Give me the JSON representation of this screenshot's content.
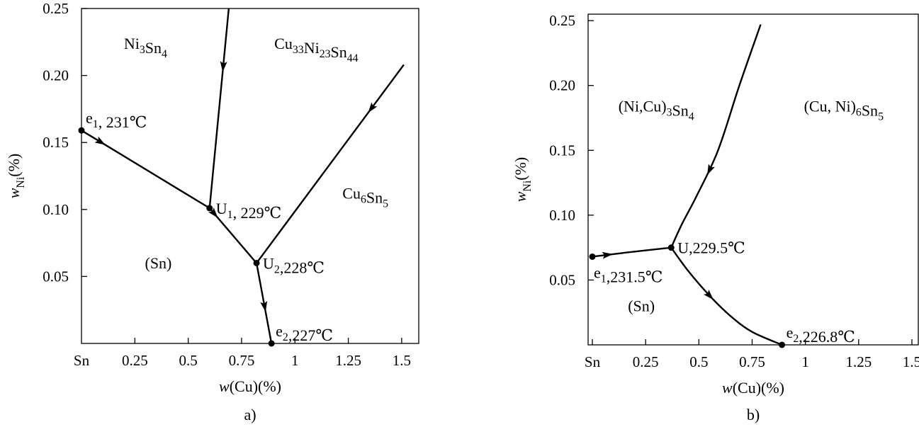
{
  "chart_data": [
    {
      "type": "line",
      "caption": "a)",
      "xlabel": "w(Cu)(%)",
      "ylabel": "wNi(%)",
      "x_ticks": [
        {
          "v": 0,
          "label": "Sn"
        },
        {
          "v": 0.25,
          "label": "0.25"
        },
        {
          "v": 0.5,
          "label": "0.5"
        },
        {
          "v": 0.75,
          "label": "0.75"
        },
        {
          "v": 1,
          "label": "1"
        },
        {
          "v": 1.25,
          "label": "1.25"
        },
        {
          "v": 1.5,
          "label": "1.5"
        }
      ],
      "y_ticks": [
        {
          "v": 0.05,
          "label": "0.05"
        },
        {
          "v": 0.1,
          "label": "0.10"
        },
        {
          "v": 0.15,
          "label": "0.15"
        },
        {
          "v": 0.2,
          "label": "0.20"
        },
        {
          "v": 0.25,
          "label": "0.25"
        }
      ],
      "xlim": [
        0,
        1.58
      ],
      "ylim": [
        0,
        0.25
      ],
      "points": [
        {
          "x": 0.0,
          "y": 0.159,
          "label": "e₁, 231℃",
          "pos": "above-right"
        },
        {
          "x": 0.6,
          "y": 0.101,
          "label": "U₁, 229℃",
          "pos": "right"
        },
        {
          "x": 0.82,
          "y": 0.06,
          "label": "U₂,228℃",
          "pos": "right"
        },
        {
          "x": 0.89,
          "y": 0.0,
          "label": "e₂,227℃",
          "pos": "above-right"
        }
      ],
      "lines": [
        {
          "x": [
            0.0,
            0.6
          ],
          "y": [
            0.159,
            0.101
          ],
          "arrows": [
            0.15
          ]
        },
        {
          "x": [
            0.69,
            0.6
          ],
          "y": [
            0.25,
            0.101
          ],
          "arrows": [
            0.29
          ]
        },
        {
          "x": [
            0.6,
            0.82
          ],
          "y": [
            0.101,
            0.06
          ],
          "arrows": [
            0.1
          ]
        },
        {
          "x": [
            1.51,
            0.82
          ],
          "y": [
            0.208,
            0.06
          ],
          "arrows": [
            0.22
          ]
        },
        {
          "x": [
            0.82,
            0.89
          ],
          "y": [
            0.06,
            0.0
          ],
          "arrows": [
            0.54
          ]
        }
      ],
      "regions": [
        {
          "label": "Ni₃Sn₄",
          "x": 0.3,
          "y": 0.22
        },
        {
          "label": "Cu₃₃Ni₂₃Sn₄₄",
          "x": 1.1,
          "y": 0.22
        },
        {
          "label": "Cu₆Sn₅",
          "x": 1.33,
          "y": 0.108
        },
        {
          "label": "(Sn)",
          "x": 0.36,
          "y": 0.056
        }
      ]
    },
    {
      "type": "line",
      "caption": "b)",
      "xlabel": "w(Cu)(%)",
      "ylabel": "wNi(%)",
      "x_ticks": [
        {
          "v": 0,
          "label": "Sn"
        },
        {
          "v": 0.25,
          "label": "0.25"
        },
        {
          "v": 0.5,
          "label": "0.5"
        },
        {
          "v": 0.75,
          "label": "0.75"
        },
        {
          "v": 1,
          "label": "1"
        },
        {
          "v": 1.25,
          "label": "1.25"
        },
        {
          "v": 1.5,
          "label": "1.5"
        }
      ],
      "y_ticks": [
        {
          "v": 0.05,
          "label": "0.05"
        },
        {
          "v": 0.1,
          "label": "0.10"
        },
        {
          "v": 0.15,
          "label": "0.15"
        },
        {
          "v": 0.2,
          "label": "0.20"
        },
        {
          "v": 0.25,
          "label": "0.25"
        }
      ],
      "xlim": [
        -0.02,
        1.53
      ],
      "ylim": [
        0,
        0.255
      ],
      "points": [
        {
          "x": 0.0,
          "y": 0.068,
          "label": "e₁,231.5℃",
          "pos": "below-right"
        },
        {
          "x": 0.37,
          "y": 0.075,
          "label": "U,229.5℃",
          "pos": "right"
        },
        {
          "x": 0.89,
          "y": 0.0,
          "label": "e₂,226.8℃",
          "pos": "above-right"
        }
      ],
      "lines": [
        {
          "x": [
            0.0,
            0.15,
            0.37
          ],
          "y": [
            0.068,
            0.071,
            0.075
          ],
          "arrows": [
            0.19
          ]
        },
        {
          "x": [
            0.79,
            0.69,
            0.59,
            0.49,
            0.42,
            0.37
          ],
          "y": [
            0.247,
            0.2,
            0.15,
            0.115,
            0.093,
            0.075
          ],
          "arrows": [
            0.64
          ]
        },
        {
          "x": [
            0.37,
            0.45,
            0.55,
            0.65,
            0.75,
            0.89
          ],
          "y": [
            0.075,
            0.057,
            0.038,
            0.022,
            0.01,
            0.0
          ],
          "arrows": [
            0.41
          ]
        }
      ],
      "regions": [
        {
          "label": "(Ni,Cu)₃Sn₄",
          "x": 0.3,
          "y": 0.18
        },
        {
          "label": "(Cu, Ni)₆Sn₅",
          "x": 1.18,
          "y": 0.18
        },
        {
          "label": "(Sn)",
          "x": 0.23,
          "y": 0.026
        }
      ]
    }
  ]
}
